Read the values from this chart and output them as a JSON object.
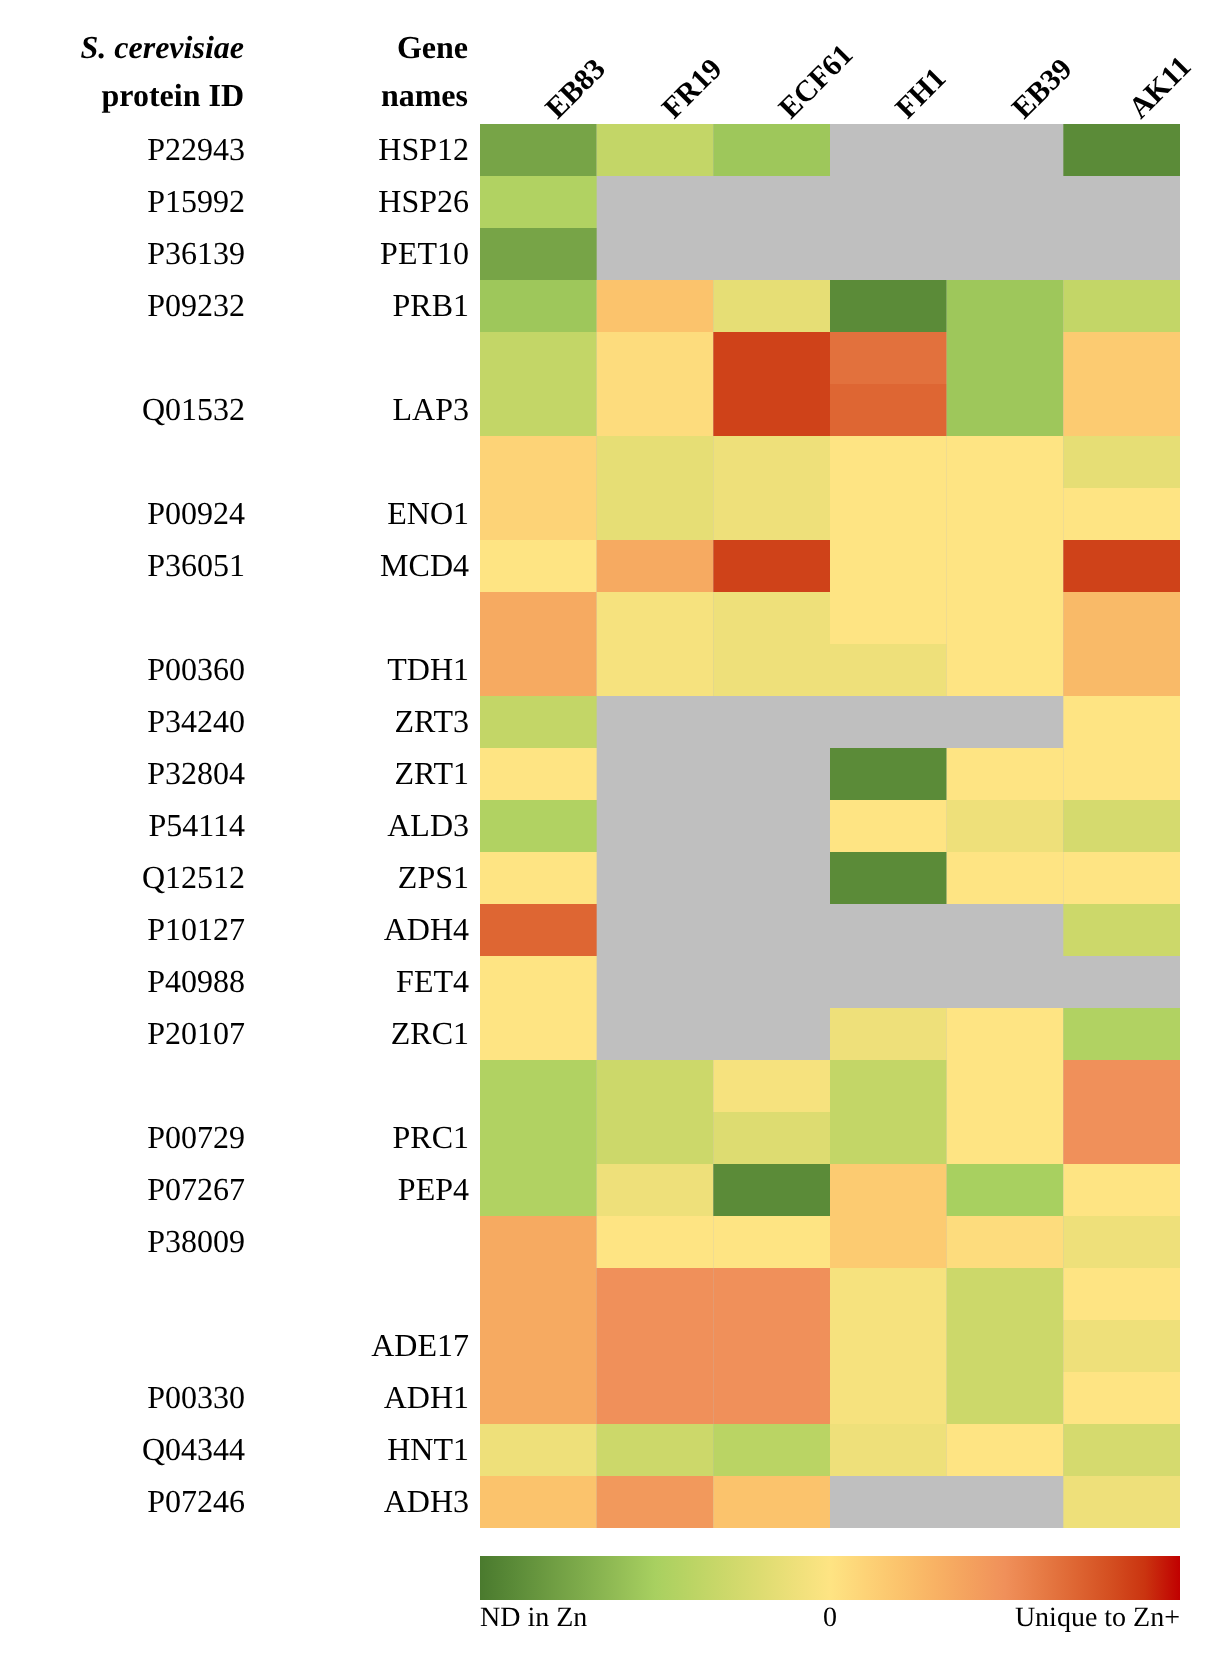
{
  "chart_data": {
    "type": "heatmap",
    "ylabel": "Gene names",
    "y2label": "S. cerevisiae protein ID",
    "categories": [
      "EB83",
      "FR19",
      "ECF61",
      "FH1",
      "EB39",
      "AK11"
    ],
    "y_categories": [
      "HSP12",
      "HSP26",
      "PET10",
      "PRB1",
      null,
      "LAP3",
      null,
      "ENO1",
      "MCD4",
      null,
      "TDH1",
      "ZRT3",
      "ZRT1",
      "ALD3",
      "ZPS1",
      "ADH4",
      "FET4",
      "ZRC1",
      null,
      "PRC1",
      "PEP4",
      null,
      null,
      "ADE17",
      "ADH1",
      "HNT1",
      "ADH3"
    ],
    "y2_categories": [
      "P22943",
      "P15992",
      "P36139",
      "P09232",
      null,
      "Q01532",
      null,
      "P00924",
      "P36051",
      null,
      "P00360",
      "P34240",
      "P32804",
      "P54114",
      "Q12512",
      "P10127",
      "P40988",
      "P20107",
      null,
      "P00729",
      "P07267",
      "P38009",
      null,
      null,
      "P00330",
      "Q04344",
      "P07246"
    ],
    "cells": [
      [
        -0.75,
        -0.35,
        -0.55,
        null,
        null,
        -0.9
      ],
      [
        -0.45,
        null,
        null,
        null,
        null,
        null
      ],
      [
        -0.75,
        null,
        null,
        null,
        null,
        null
      ],
      [
        -0.55,
        0.2,
        -0.15,
        -0.9,
        -0.55,
        -0.35
      ],
      [
        -0.35,
        0.05,
        0.85,
        0.65,
        -0.55,
        0.15
      ],
      [
        -0.35,
        0.05,
        0.85,
        0.7,
        -0.55,
        0.15
      ],
      [
        0.1,
        -0.15,
        -0.1,
        0,
        0,
        -0.15
      ],
      [
        0.1,
        -0.15,
        -0.1,
        0,
        0,
        0
      ],
      [
        0,
        0.35,
        0.85,
        0,
        0,
        0.85
      ],
      [
        0.35,
        -0.05,
        -0.1,
        0,
        0,
        0.25
      ],
      [
        0.35,
        -0.05,
        -0.1,
        -0.1,
        0,
        0.25
      ],
      [
        -0.35,
        null,
        null,
        null,
        null,
        0
      ],
      [
        0,
        null,
        null,
        -0.9,
        0,
        0
      ],
      [
        -0.45,
        null,
        null,
        0,
        -0.1,
        -0.25
      ],
      [
        0,
        null,
        null,
        -0.9,
        0,
        0
      ],
      [
        0.7,
        null,
        null,
        null,
        null,
        -0.3
      ],
      [
        0,
        null,
        null,
        null,
        null,
        null
      ],
      [
        0,
        null,
        null,
        -0.1,
        0,
        -0.45
      ],
      [
        -0.45,
        -0.3,
        -0.05,
        -0.35,
        0,
        0.5
      ],
      [
        -0.45,
        -0.3,
        -0.2,
        -0.35,
        0,
        0.5
      ],
      [
        -0.45,
        -0.1,
        -0.9,
        0.15,
        -0.5,
        0
      ],
      [
        0.35,
        0,
        0,
        0.15,
        0.05,
        -0.1
      ],
      [
        0.35,
        0.5,
        0.5,
        -0.05,
        -0.3,
        0
      ],
      [
        0.35,
        0.5,
        0.5,
        -0.05,
        -0.3,
        -0.1
      ],
      [
        0.35,
        0.5,
        0.5,
        -0.05,
        -0.3,
        0
      ],
      [
        -0.1,
        -0.3,
        -0.4,
        -0.1,
        0,
        -0.25
      ],
      [
        0.2,
        0.45,
        0.2,
        null,
        null,
        -0.1
      ]
    ],
    "clim": [
      -1,
      1
    ],
    "cticks": [
      {
        "value": -1,
        "label": "ND in Zn"
      },
      {
        "value": 0,
        "label": "0"
      },
      {
        "value": 1,
        "label": "Unique to Zn+"
      }
    ]
  }
}
